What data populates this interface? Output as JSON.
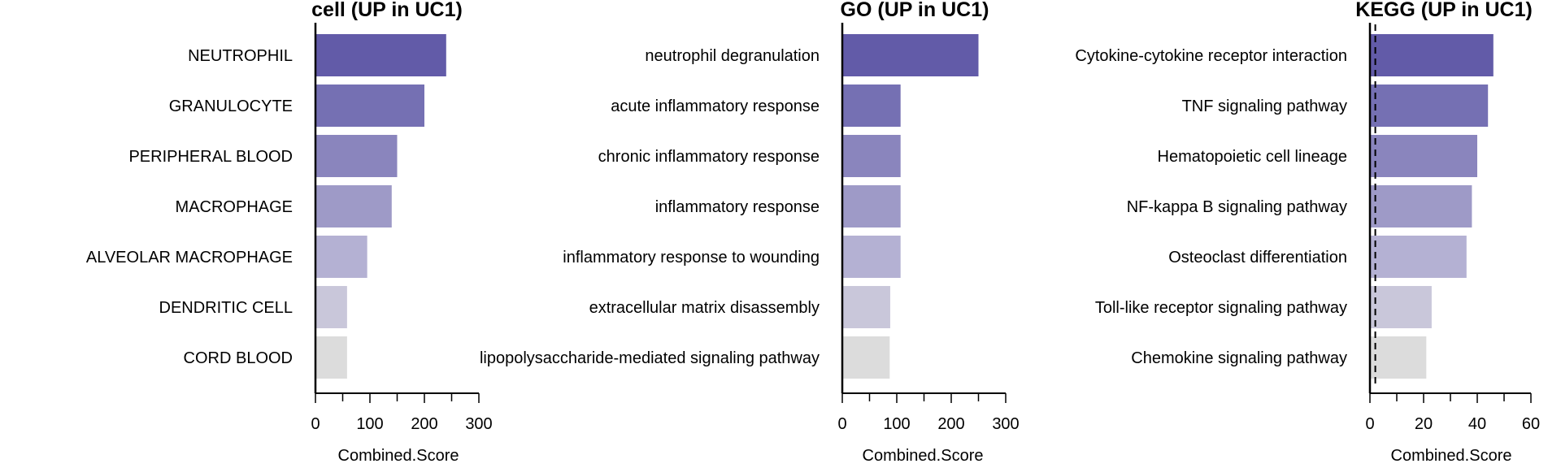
{
  "chart_data": [
    {
      "type": "bar",
      "orientation": "horizontal",
      "title": "cell (UP in UC1)",
      "xlabel": "Combined.Score",
      "ylabel": "",
      "xlim": [
        0,
        300
      ],
      "xticks": [
        0,
        100,
        200,
        300
      ],
      "categories": [
        "NEUTROPHIL",
        "GRANULOCYTE",
        "PERIPHERAL BLOOD",
        "MACROPHAGE",
        "ALVEOLAR MACROPHAGE",
        "DENDRITIC CELL",
        "CORD BLOOD"
      ],
      "values": [
        240,
        200,
        150,
        140,
        95,
        58,
        58
      ],
      "bar_colors": [
        "#625ba8",
        "#7570b3",
        "#8a85bd",
        "#9e9ac7",
        "#b4b1d3",
        "#c9c7da",
        "#dcdcdc"
      ],
      "reference_line": null,
      "grid": false
    },
    {
      "type": "bar",
      "orientation": "horizontal",
      "title": "GO (UP in UC1)",
      "xlabel": "Combined.Score",
      "ylabel": "",
      "xlim": [
        0,
        300
      ],
      "xticks": [
        0,
        100,
        200,
        300
      ],
      "categories": [
        "neutrophil degranulation",
        "acute inflammatory response",
        "chronic inflammatory response",
        "inflammatory response",
        "inflammatory response to wounding",
        "extracellular matrix disassembly",
        "lipopolysaccharide-mediated signaling pathway"
      ],
      "values": [
        250,
        107,
        107,
        107,
        107,
        88,
        87
      ],
      "bar_colors": [
        "#625ba8",
        "#7570b3",
        "#8a85bd",
        "#9e9ac7",
        "#b4b1d3",
        "#c9c7da",
        "#dcdcdc"
      ],
      "reference_line": null,
      "grid": false
    },
    {
      "type": "bar",
      "orientation": "horizontal",
      "title": "KEGG (UP in UC1)",
      "xlabel": "Combined.Score",
      "ylabel": "",
      "xlim": [
        0,
        60
      ],
      "xticks": [
        0,
        20,
        40,
        60
      ],
      "categories": [
        "Cytokine-cytokine receptor interaction",
        "TNF signaling pathway",
        "Hematopoietic cell lineage",
        "NF-kappa B signaling pathway",
        "Osteoclast differentiation",
        "Toll-like receptor signaling pathway",
        "Chemokine signaling pathway"
      ],
      "values": [
        46,
        44,
        40,
        38,
        36,
        23,
        21
      ],
      "bar_colors": [
        "#625ba8",
        "#7570b3",
        "#8a85bd",
        "#9e9ac7",
        "#b4b1d3",
        "#c9c7da",
        "#dcdcdc"
      ],
      "reference_line": {
        "x": 2,
        "style": "dashed"
      },
      "grid": false
    }
  ]
}
